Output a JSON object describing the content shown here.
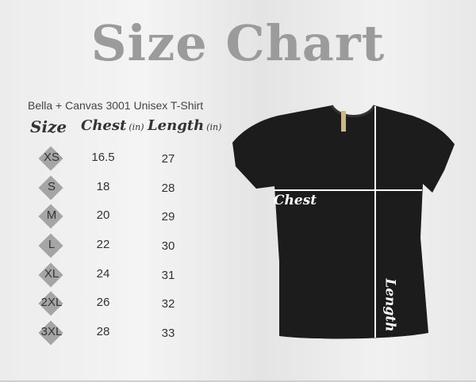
{
  "title": "Size Chart",
  "subtitle": "Bella + Canvas 3001  Unisex T-Shirt",
  "headers": {
    "size": "Size",
    "chest": "Chest",
    "chest_unit": "(in)",
    "length": "Length",
    "length_unit": "(in)"
  },
  "rows": [
    {
      "size": "XS",
      "chest": "16.5",
      "length": "27"
    },
    {
      "size": "S",
      "chest": "18",
      "length": "28"
    },
    {
      "size": "M",
      "chest": "20",
      "length": "29"
    },
    {
      "size": "L",
      "chest": "22",
      "length": "30"
    },
    {
      "size": "XL",
      "chest": "24",
      "length": "31"
    },
    {
      "size": "2XL",
      "chest": "26",
      "length": "32"
    },
    {
      "size": "3XL",
      "chest": "28",
      "length": "33"
    }
  ],
  "shirt": {
    "chest_label": "Chest",
    "length_label": "Length",
    "color": "#1c1c1c"
  }
}
